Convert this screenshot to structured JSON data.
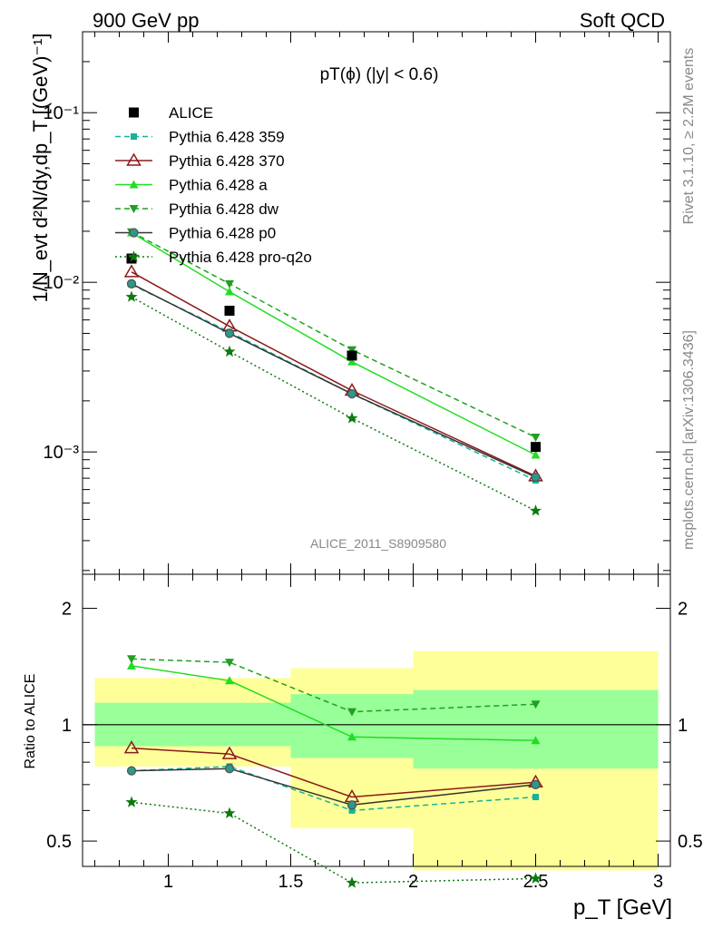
{
  "chart_data": [
    {
      "type": "line",
      "top_left_label": "900 GeV pp",
      "top_right_label": "Soft QCD",
      "title": "pT(ϕ) (|y| < 0.6)",
      "ylabel": "1/N_evt d²N/dy,dp_T [(GeV)⁻¹]",
      "yscale": "log",
      "ylim": [
        0.00019,
        0.3
      ],
      "xlim": [
        0.65,
        3.05
      ],
      "yticks": [
        {
          "value": 0.1,
          "label": "10⁻¹"
        },
        {
          "value": 0.01,
          "label": "10⁻²"
        },
        {
          "value": 0.001,
          "label": "10⁻³"
        }
      ],
      "watermark": "ALICE_2011_S8909580",
      "side_label_top": "Rivet 3.1.10, ≥ 2.2M events",
      "side_label_bottom": "mcplots.cern.ch [arXiv:1306.3436]",
      "x": [
        0.85,
        1.25,
        1.75,
        2.5
      ],
      "data": {
        "name": "ALICE",
        "values": [
          0.0138,
          0.0068,
          0.0037,
          0.00107
        ],
        "color": "#000000"
      },
      "series": [
        {
          "name": "Pythia 6.428 359",
          "values": [
            0.0097,
            0.0051,
            0.0022,
            0.00068
          ],
          "color": "#16b39a",
          "marker": "dot",
          "dash": "dashed"
        },
        {
          "name": "Pythia 6.428 370",
          "values": [
            0.0115,
            0.0055,
            0.0023,
            0.00072
          ],
          "color": "#8b1a1a",
          "marker": "open-triangle",
          "dash": "solid"
        },
        {
          "name": "Pythia 6.428 a",
          "values": [
            0.0196,
            0.0088,
            0.0034,
            0.00096
          ],
          "color": "#22dd22",
          "marker": "triangle-up",
          "dash": "solid"
        },
        {
          "name": "Pythia 6.428 dw",
          "values": [
            0.0198,
            0.0098,
            0.004,
            0.00122
          ],
          "color": "#20a020",
          "marker": "triangle-down",
          "dash": "dashed"
        },
        {
          "name": "Pythia 6.428 p0",
          "values": [
            0.0098,
            0.005,
            0.0022,
            0.00071
          ],
          "color": "#333333",
          "marker": "open-circle",
          "dash": "solid"
        },
        {
          "name": "Pythia 6.428 pro-q2o",
          "values": [
            0.0082,
            0.0039,
            0.00158,
            0.00045
          ],
          "color": "#0d7a0d",
          "marker": "star",
          "dash": "dotted"
        }
      ]
    },
    {
      "type": "line",
      "ylabel": "Ratio to ALICE",
      "xlabel": "p_T [GeV]",
      "yscale": "log",
      "ylim": [
        0.43,
        2.45
      ],
      "xlim": [
        0.65,
        3.05
      ],
      "xticks": [
        1,
        1.5,
        2,
        2.5,
        3
      ],
      "yticks": [
        0.5,
        1,
        2
      ],
      "x": [
        0.85,
        1.25,
        1.75,
        2.5
      ],
      "bins": [
        [
          0.7,
          1.5
        ],
        [
          1.5,
          2.0
        ],
        [
          2.0,
          3.0
        ]
      ],
      "band_yellow": [
        [
          0.78,
          1.32
        ],
        [
          0.54,
          1.4
        ],
        [
          0.42,
          1.55
        ]
      ],
      "band_green": [
        [
          0.88,
          1.14
        ],
        [
          0.82,
          1.2
        ],
        [
          0.77,
          1.23
        ]
      ],
      "series": [
        {
          "name": "Pythia 6.428 359",
          "values": [
            0.76,
            0.78,
            0.6,
            0.65
          ]
        },
        {
          "name": "Pythia 6.428 370",
          "values": [
            0.87,
            0.84,
            0.65,
            0.71
          ]
        },
        {
          "name": "Pythia 6.428 a",
          "values": [
            1.42,
            1.3,
            0.93,
            0.91
          ]
        },
        {
          "name": "Pythia 6.428 dw",
          "values": [
            1.48,
            1.45,
            1.08,
            1.13
          ]
        },
        {
          "name": "Pythia 6.428 p0",
          "values": [
            0.76,
            0.77,
            0.62,
            0.7
          ]
        },
        {
          "name": "Pythia 6.428 pro-q2o",
          "values": [
            0.63,
            0.59,
            0.39,
            0.4
          ]
        }
      ]
    }
  ]
}
